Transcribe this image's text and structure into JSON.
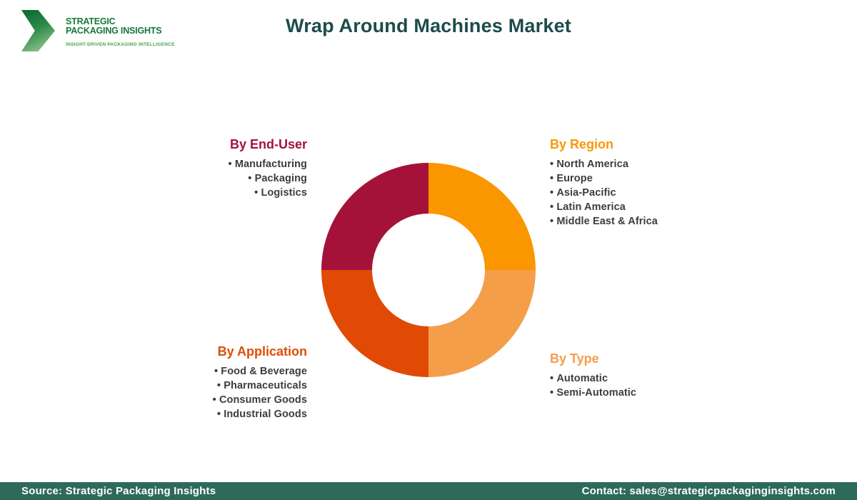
{
  "logo": {
    "line1": "STRATEGIC",
    "line2": "PACKAGING INSIGHTS",
    "tagline": "INSIGHT-DRIVEN PACKAGING INTELLIGENCE"
  },
  "header": {
    "title": "Wrap Around Machines Market",
    "title_color": "#1e4b4c"
  },
  "chart_data": {
    "type": "pie",
    "donut": true,
    "legend_position": "corners",
    "slices": [
      {
        "label": "By Region",
        "value": 25,
        "color": "#fa9600",
        "position": "top-right"
      },
      {
        "label": "By Type",
        "value": 25,
        "color": "#f49e4a",
        "position": "bottom-right"
      },
      {
        "label": "By Application",
        "value": 25,
        "color": "#e04a05",
        "position": "bottom-left"
      },
      {
        "label": "By End-User",
        "value": 25,
        "color": "#a51239",
        "position": "top-left"
      }
    ]
  },
  "segments": [
    {
      "title": "By End-User",
      "color": "#a51239",
      "items": [
        "Manufacturing",
        "Packaging",
        "Logistics"
      ]
    },
    {
      "title": "By Region",
      "color": "#f99708",
      "items": [
        "North America",
        "Europe",
        "Asia-Pacific",
        "Latin America",
        "Middle East & Africa"
      ]
    },
    {
      "title": "By Application",
      "color": "#e04c07",
      "items": [
        "Food & Beverage",
        "Pharmaceuticals",
        "Consumer Goods",
        "Industrial Goods"
      ]
    },
    {
      "title": "By Type",
      "color": "#f49e4a",
      "items": [
        "Automatic",
        "Semi-Automatic"
      ]
    }
  ],
  "footer": {
    "source": "Source: Strategic Packaging Insights",
    "contact": "Contact: sales@strategicpackaginginsights.com",
    "bar_color": "#2d6a5a"
  }
}
